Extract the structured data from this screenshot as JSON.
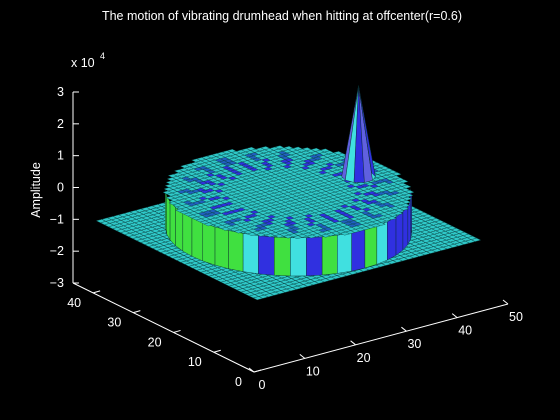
{
  "chart_data": {
    "type": "surface",
    "title": "The motion of vibrating drumhead when hitting at offcenter(r=0.6)",
    "zlabel": "Amplitude",
    "zexponent": "x 10",
    "zexponent_power": "4",
    "x_ticks": [
      "0",
      "10",
      "20",
      "30",
      "40",
      "50"
    ],
    "y_ticks": [
      "0",
      "10",
      "20",
      "30",
      "40"
    ],
    "z_ticks": [
      "3",
      "2",
      "1",
      "0",
      "−1",
      "−2",
      "−3"
    ],
    "xlim": [
      0,
      50
    ],
    "ylim": [
      0,
      45
    ],
    "zlim": [
      -3,
      3
    ],
    "colors": {
      "background": "#000000",
      "mesh_face": "#2fc8c8",
      "mesh_edge": "#0a4040",
      "wall_green": "#40e040",
      "wall_cyan": "#40e0e0",
      "wall_blue": "#3030e0",
      "peak": "#6060e0"
    }
  }
}
